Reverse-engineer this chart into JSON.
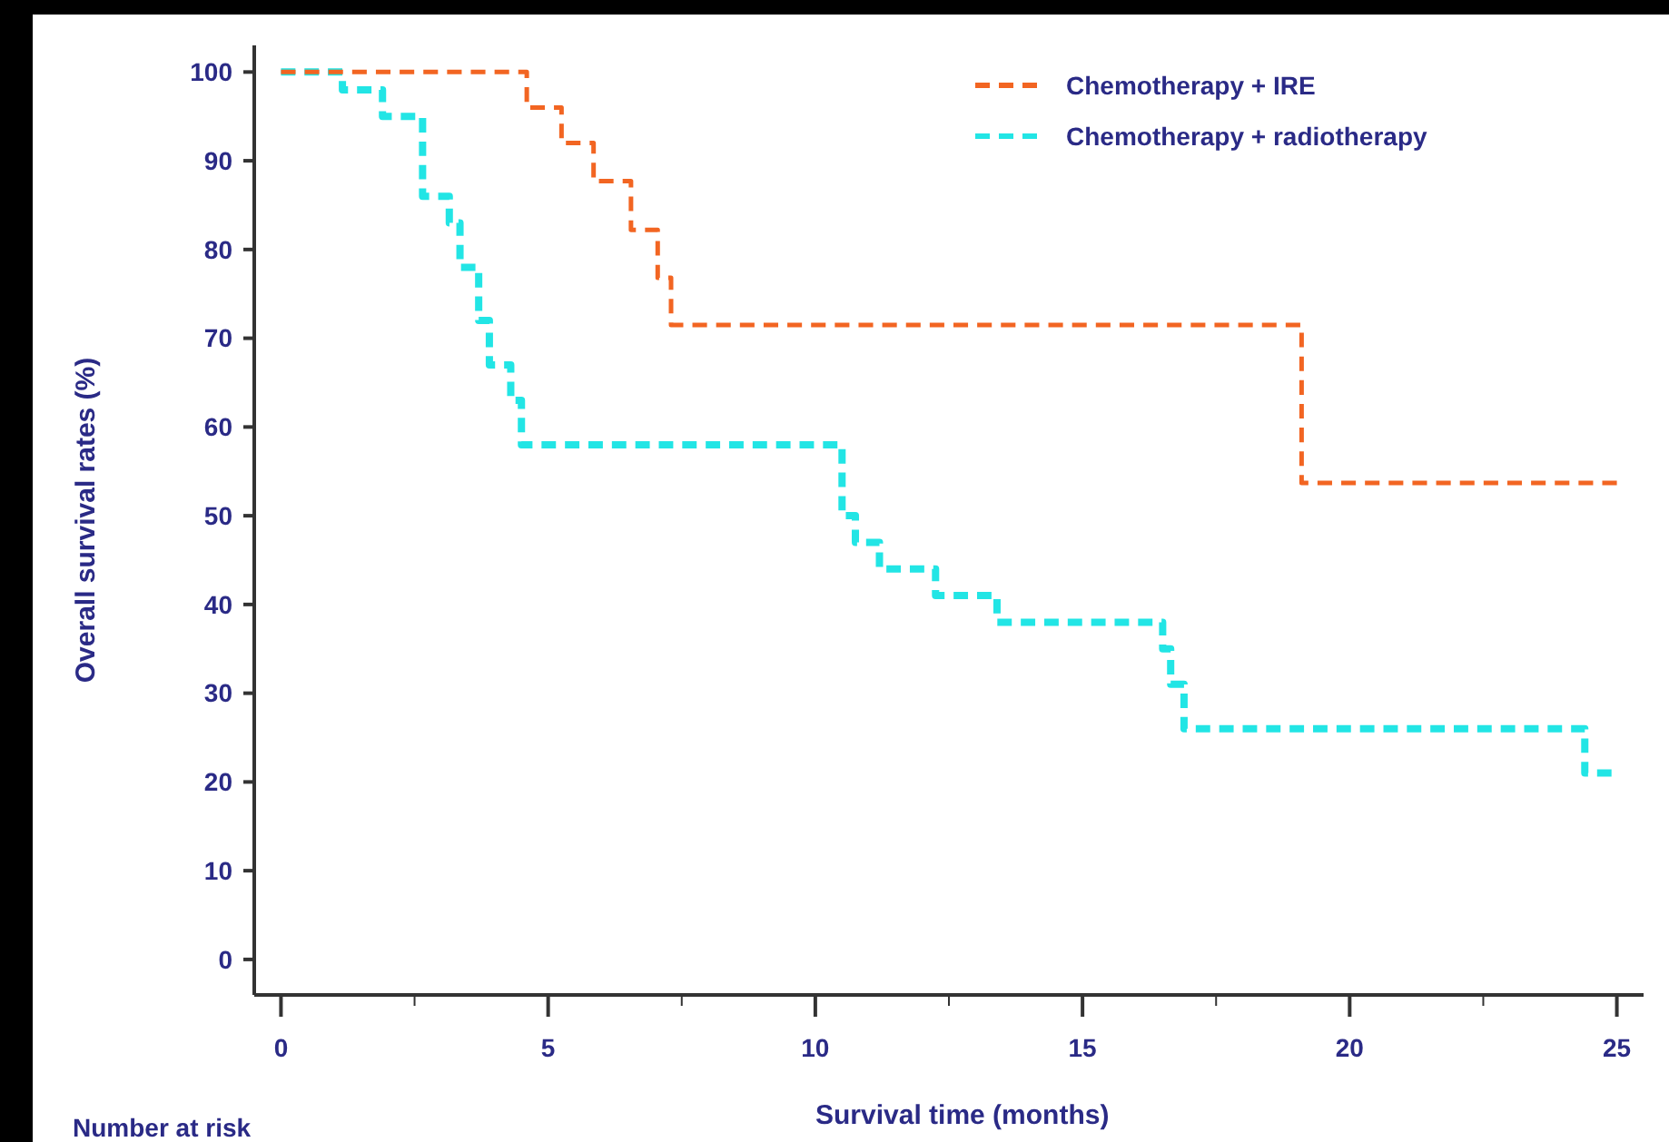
{
  "chart_data": {
    "type": "step",
    "xlabel": "Survival time (months)",
    "ylabel": "Overall survival rates (%)",
    "xlim": [
      -0.5,
      25.5
    ],
    "ylim": [
      -4,
      103
    ],
    "xticks": [
      0,
      {
        "value": 2.5,
        "label": null
      },
      5,
      {
        "value": 7.5,
        "label": null
      },
      10,
      {
        "value": 12.5,
        "label": null
      },
      15,
      {
        "value": 17.5,
        "label": null
      },
      20,
      {
        "value": 22.5,
        "label": null
      },
      25
    ],
    "yticks": [
      0,
      10,
      20,
      30,
      40,
      50,
      60,
      70,
      80,
      90,
      100
    ],
    "grid": false,
    "legend": "top right",
    "line_style": "dashed",
    "marker": "none",
    "annotations": [
      "Number at risk"
    ],
    "series": [
      {
        "name": "Chemotherapy + IRE",
        "color": "#f26522",
        "x": [
          0,
          4.6,
          5.25,
          5.85,
          6.55,
          7.05,
          7.3,
          19.1,
          25
        ],
        "values": [
          100,
          96,
          92,
          87.7,
          82.2,
          76.8,
          71.5,
          53.7,
          53.7
        ]
      },
      {
        "name": "Chemotherapy + radiotherapy",
        "color": "#22e5e5",
        "x": [
          0,
          1.15,
          1.9,
          2.65,
          3.15,
          3.35,
          3.7,
          3.9,
          4.3,
          4.5,
          10.5,
          10.75,
          11.2,
          12.25,
          13.4,
          16.5,
          16.65,
          16.9,
          24.4,
          24.9
        ],
        "values": [
          100,
          98,
          95,
          86,
          83,
          78,
          72,
          67,
          63,
          58,
          50,
          47,
          44,
          41,
          38,
          35,
          31,
          26,
          21,
          21
        ]
      }
    ]
  }
}
